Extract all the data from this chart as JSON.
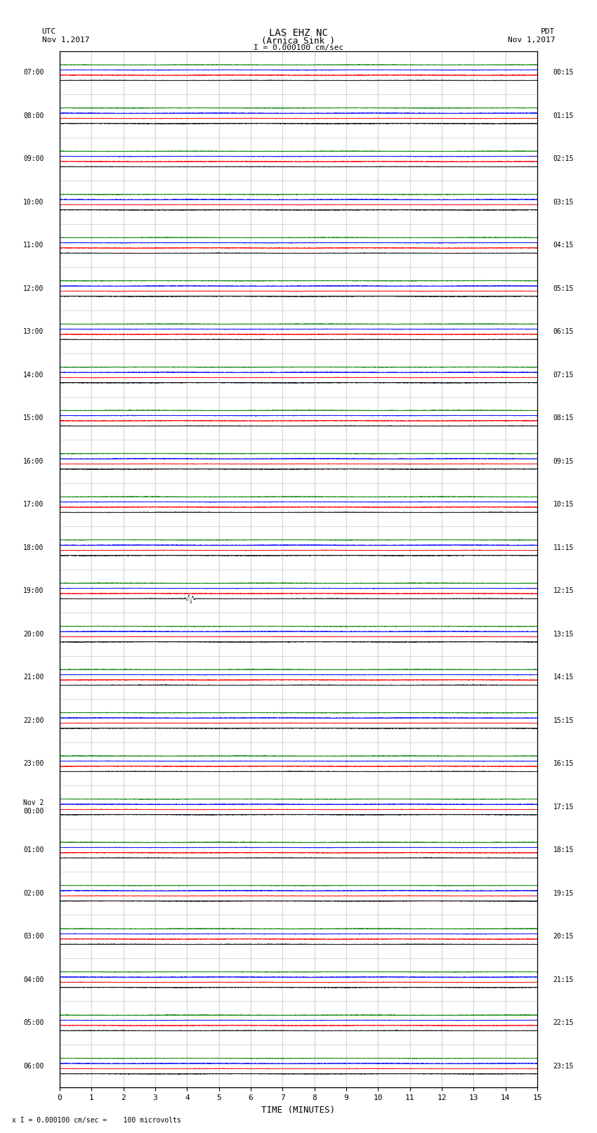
{
  "title_line1": "LAS EHZ NC",
  "title_line2": "(Arnica Sink )",
  "scale_label": "I = 0.000100 cm/sec",
  "left_header": "UTC\nNov 1,2017",
  "right_header": "PDT\nNov 1,2017",
  "bottom_note": "x I = 0.000100 cm/sec =    100 microvolts",
  "xlabel": "TIME (MINUTES)",
  "xlim": [
    0,
    15
  ],
  "xticks": [
    0,
    1,
    2,
    3,
    4,
    5,
    6,
    7,
    8,
    9,
    10,
    11,
    12,
    13,
    14,
    15
  ],
  "left_times": [
    "07:00",
    "08:00",
    "09:00",
    "10:00",
    "11:00",
    "12:00",
    "13:00",
    "14:00",
    "15:00",
    "16:00",
    "17:00",
    "18:00",
    "19:00",
    "20:00",
    "21:00",
    "22:00",
    "23:00",
    "Nov 2\n00:00",
    "01:00",
    "02:00",
    "03:00",
    "04:00",
    "05:00",
    "06:00"
  ],
  "right_times": [
    "00:15",
    "01:15",
    "02:15",
    "03:15",
    "04:15",
    "05:15",
    "06:15",
    "07:15",
    "08:15",
    "09:15",
    "10:15",
    "11:15",
    "12:15",
    "13:15",
    "14:15",
    "15:15",
    "16:15",
    "17:15",
    "18:15",
    "19:15",
    "20:15",
    "21:15",
    "22:15",
    "23:15"
  ],
  "num_rows": 24,
  "bg_color": "#ffffff",
  "grid_color": "#cccccc",
  "trace_colors": [
    "black",
    "red",
    "blue",
    "green"
  ],
  "seismic_event_row": 12,
  "seismic_event_time": 4.0
}
